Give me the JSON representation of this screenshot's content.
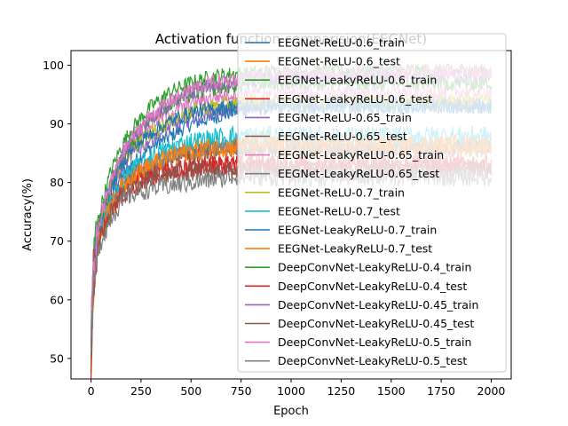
{
  "chart_data": {
    "type": "line",
    "title": "Activation function comparision(EEGNet)",
    "xlabel": "Epoch",
    "ylabel": "Accuracy(%)",
    "xlim": [
      -100,
      2100
    ],
    "ylim": [
      46.5,
      102.5
    ],
    "xticks": [
      0,
      250,
      500,
      750,
      1000,
      1250,
      1500,
      1750,
      2000
    ],
    "yticks": [
      50,
      60,
      70,
      80,
      90,
      100
    ],
    "grid": false,
    "legend_position": "upper right",
    "x": [
      0,
      10,
      25,
      50,
      100,
      150,
      200,
      300,
      400,
      500,
      600,
      700,
      800,
      1000,
      1250,
      1500,
      1750,
      2000
    ],
    "series": [
      {
        "name": "EEGNet-ReLU-0.6_train",
        "color": "#1f77b4",
        "values": [
          52,
          63,
          69,
          73,
          78,
          81,
          83,
          86,
          88,
          90,
          91,
          92,
          92.5,
          93,
          93,
          93,
          93,
          93
        ]
      },
      {
        "name": "EEGNet-ReLU-0.6_test",
        "color": "#ff7f0e",
        "values": [
          51,
          62,
          68,
          71,
          75,
          78.5,
          80.5,
          82.5,
          84,
          85,
          85.5,
          86,
          86,
          86,
          86,
          86,
          86,
          86
        ]
      },
      {
        "name": "EEGNet-LeakyReLU-0.6_train",
        "color": "#2ca02c",
        "values": [
          53,
          66,
          72,
          76,
          82,
          86,
          89,
          93,
          95.5,
          97,
          98,
          98.5,
          98.7,
          99,
          99,
          99,
          99,
          99
        ]
      },
      {
        "name": "EEGNet-LeakyReLU-0.6_test",
        "color": "#d62728",
        "values": [
          52,
          64,
          70,
          73,
          77,
          79.5,
          80.5,
          81.5,
          82,
          82.5,
          83,
          83,
          83,
          83,
          83,
          83,
          83,
          83
        ]
      },
      {
        "name": "EEGNet-ReLU-0.65_train",
        "color": "#9467bd",
        "values": [
          52,
          64,
          70,
          74,
          79,
          82,
          84.5,
          87.5,
          89.5,
          91,
          92,
          92.5,
          93,
          93.5,
          93.5,
          93.5,
          93.5,
          93.5
        ]
      },
      {
        "name": "EEGNet-ReLU-0.65_test",
        "color": "#8c564b",
        "values": [
          51,
          62,
          68,
          72,
          76,
          79,
          81,
          83,
          84,
          85,
          85.5,
          86,
          86,
          86,
          86,
          86,
          86,
          86
        ]
      },
      {
        "name": "EEGNet-LeakyReLU-0.65_train",
        "color": "#e377c2",
        "values": [
          52,
          65,
          71,
          75,
          80,
          84,
          86.5,
          90,
          92,
          93.5,
          94.5,
          95,
          95.5,
          95.5,
          95.5,
          95.5,
          95.5,
          95.5
        ]
      },
      {
        "name": "EEGNet-LeakyReLU-0.65_test",
        "color": "#7f7f7f",
        "values": [
          51,
          62,
          68,
          72,
          76,
          79,
          81,
          83,
          84.5,
          85,
          85.5,
          86,
          86,
          86,
          86,
          86,
          86,
          86
        ]
      },
      {
        "name": "EEGNet-ReLU-0.7_train",
        "color": "#bcbd22",
        "values": [
          52,
          64,
          70,
          74,
          79,
          83,
          85.5,
          88.5,
          90.5,
          92,
          93,
          93.5,
          94,
          94,
          94,
          94,
          94,
          94
        ]
      },
      {
        "name": "EEGNet-ReLU-0.7_test",
        "color": "#17becf",
        "values": [
          51,
          63,
          69,
          73,
          77,
          80,
          82,
          84.5,
          86,
          87,
          87.5,
          88,
          88,
          88,
          88,
          88,
          88,
          88
        ]
      },
      {
        "name": "EEGNet-LeakyReLU-0.7_train",
        "color": "#1f77b4",
        "values": [
          52,
          64,
          70,
          74,
          79,
          83,
          85.5,
          88.5,
          90.5,
          92,
          92.5,
          93,
          93,
          93,
          93,
          93,
          93,
          93
        ]
      },
      {
        "name": "EEGNet-LeakyReLU-0.7_test",
        "color": "#ff7f0e",
        "values": [
          51,
          62,
          68,
          72,
          76,
          79,
          81,
          83,
          84.5,
          85.5,
          86,
          86,
          86.5,
          86.5,
          86.5,
          86.5,
          86.5,
          86.5
        ]
      },
      {
        "name": "DeepConvNet-LeakyReLU-0.4_train",
        "color": "#2ca02c",
        "values": [
          51,
          63,
          70,
          74,
          80,
          84,
          87,
          91,
          93.5,
          95,
          96,
          96.5,
          97,
          97,
          97,
          97,
          97,
          97
        ]
      },
      {
        "name": "DeepConvNet-LeakyReLU-0.4_test",
        "color": "#d62728",
        "values": [
          50,
          61,
          67,
          71,
          75,
          78,
          79.5,
          81,
          82,
          82.5,
          83,
          83,
          83,
          83,
          83,
          83,
          83,
          83
        ]
      },
      {
        "name": "DeepConvNet-LeakyReLU-0.45_train",
        "color": "#9467bd",
        "values": [
          51,
          63,
          70,
          74,
          80,
          84,
          87,
          91,
          93.5,
          95.5,
          96.5,
          97,
          97.5,
          98,
          98,
          98,
          98,
          98
        ]
      },
      {
        "name": "DeepConvNet-LeakyReLU-0.45_test",
        "color": "#8c564b",
        "values": [
          50,
          61,
          67,
          71,
          75,
          77.5,
          79,
          80.5,
          81.5,
          82,
          82,
          82,
          82,
          82,
          82,
          82,
          82,
          82
        ]
      },
      {
        "name": "DeepConvNet-LeakyReLU-0.5_train",
        "color": "#e377c2",
        "values": [
          51,
          63,
          70,
          74,
          80,
          84.5,
          87.5,
          91.5,
          94,
          96,
          97,
          97.5,
          98,
          98.5,
          98.5,
          99,
          99,
          99
        ]
      },
      {
        "name": "DeepConvNet-LeakyReLU-0.5_test",
        "color": "#7f7f7f",
        "values": [
          50,
          60,
          66,
          70,
          74,
          76.5,
          78,
          79,
          79.5,
          80,
          80.5,
          81,
          81,
          81,
          81,
          81,
          81,
          81
        ]
      }
    ]
  }
}
